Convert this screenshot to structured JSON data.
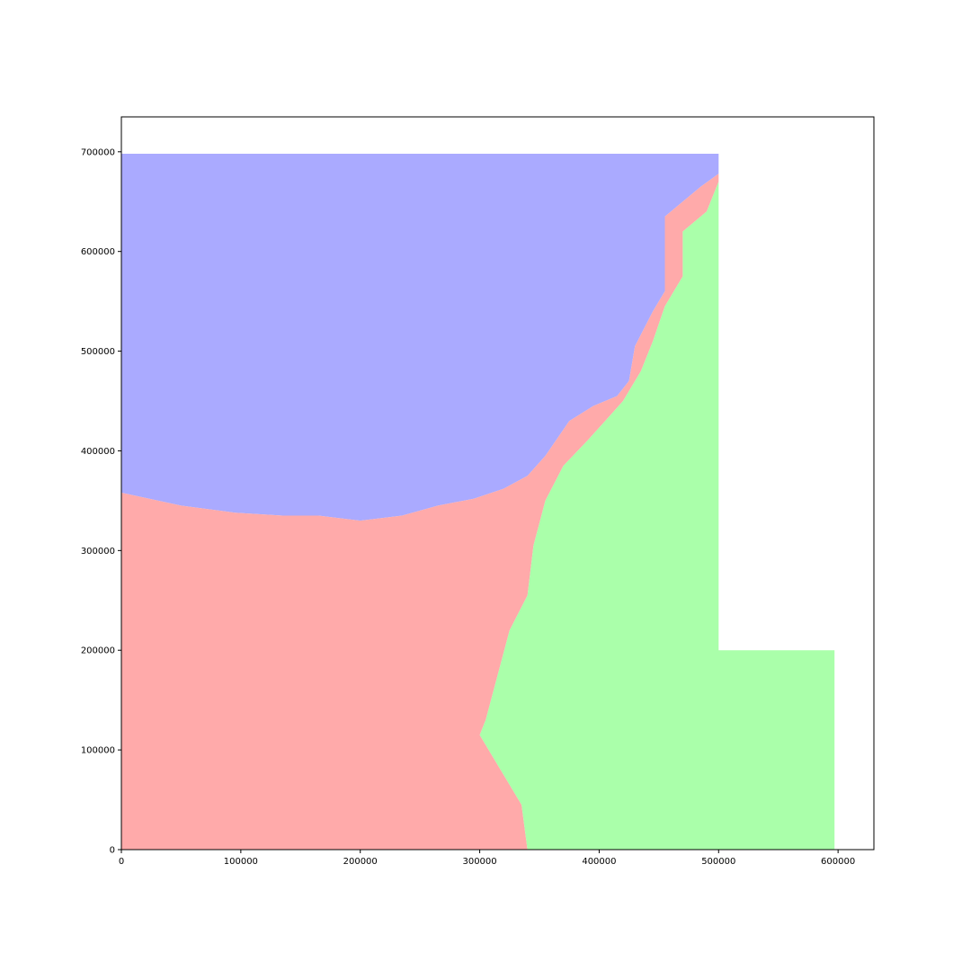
{
  "chart_data": {
    "type": "heatmap",
    "title": "",
    "xlabel": "",
    "ylabel": "",
    "xlim": [
      0,
      630000
    ],
    "ylim": [
      0,
      735000
    ],
    "x_ticks": [
      0,
      100000,
      200000,
      300000,
      400000,
      500000,
      600000
    ],
    "y_ticks": [
      0,
      100000,
      200000,
      300000,
      400000,
      500000,
      600000,
      700000
    ],
    "x_tick_labels": [
      "0",
      "100000",
      "200000",
      "300000",
      "400000",
      "500000",
      "600000"
    ],
    "y_tick_labels": [
      "0",
      "100000",
      "200000",
      "300000",
      "400000",
      "500000",
      "600000",
      "700000"
    ],
    "grid": false,
    "regions": [
      {
        "name": "blue-region",
        "color": "#aaaaff",
        "polygon": [
          [
            0,
            698000
          ],
          [
            500000,
            698000
          ],
          [
            500000,
            678000
          ],
          [
            485000,
            665000
          ],
          [
            470000,
            650000
          ],
          [
            455000,
            635000
          ],
          [
            455000,
            600000
          ],
          [
            455000,
            560000
          ],
          [
            445000,
            540000
          ],
          [
            430000,
            505000
          ],
          [
            425000,
            470000
          ],
          [
            415000,
            455000
          ],
          [
            395000,
            445000
          ],
          [
            375000,
            430000
          ],
          [
            355000,
            395000
          ],
          [
            340000,
            375000
          ],
          [
            320000,
            362000
          ],
          [
            295000,
            352000
          ],
          [
            265000,
            345000
          ],
          [
            235000,
            335000
          ],
          [
            200000,
            330000
          ],
          [
            165000,
            335000
          ],
          [
            135000,
            335000
          ],
          [
            95000,
            338000
          ],
          [
            50000,
            345000
          ],
          [
            0,
            358000
          ]
        ]
      },
      {
        "name": "red-region",
        "color": "#ffaaaa",
        "polygon": [
          [
            0,
            358000
          ],
          [
            50000,
            345000
          ],
          [
            95000,
            338000
          ],
          [
            135000,
            335000
          ],
          [
            165000,
            335000
          ],
          [
            200000,
            330000
          ],
          [
            235000,
            335000
          ],
          [
            265000,
            345000
          ],
          [
            295000,
            352000
          ],
          [
            320000,
            362000
          ],
          [
            340000,
            375000
          ],
          [
            355000,
            395000
          ],
          [
            375000,
            430000
          ],
          [
            395000,
            445000
          ],
          [
            415000,
            455000
          ],
          [
            425000,
            470000
          ],
          [
            430000,
            505000
          ],
          [
            445000,
            540000
          ],
          [
            455000,
            560000
          ],
          [
            455000,
            600000
          ],
          [
            455000,
            635000
          ],
          [
            470000,
            650000
          ],
          [
            485000,
            665000
          ],
          [
            500000,
            678000
          ],
          [
            500000,
            670000
          ],
          [
            490000,
            640000
          ],
          [
            470000,
            620000
          ],
          [
            470000,
            575000
          ],
          [
            455000,
            545000
          ],
          [
            445000,
            510000
          ],
          [
            435000,
            480000
          ],
          [
            420000,
            450000
          ],
          [
            405000,
            430000
          ],
          [
            390000,
            410000
          ],
          [
            370000,
            385000
          ],
          [
            355000,
            350000
          ],
          [
            345000,
            305000
          ],
          [
            340000,
            255000
          ],
          [
            325000,
            220000
          ],
          [
            315000,
            175000
          ],
          [
            305000,
            130000
          ],
          [
            300000,
            115000
          ],
          [
            310000,
            95000
          ],
          [
            325000,
            65000
          ],
          [
            335000,
            45000
          ],
          [
            340000,
            0
          ],
          [
            0,
            0
          ]
        ]
      },
      {
        "name": "green-region",
        "color": "#aaffaa",
        "polygon": [
          [
            340000,
            0
          ],
          [
            335000,
            45000
          ],
          [
            325000,
            65000
          ],
          [
            310000,
            95000
          ],
          [
            300000,
            115000
          ],
          [
            305000,
            130000
          ],
          [
            315000,
            175000
          ],
          [
            325000,
            220000
          ],
          [
            340000,
            255000
          ],
          [
            345000,
            305000
          ],
          [
            355000,
            350000
          ],
          [
            370000,
            385000
          ],
          [
            390000,
            410000
          ],
          [
            405000,
            430000
          ],
          [
            420000,
            450000
          ],
          [
            435000,
            480000
          ],
          [
            445000,
            510000
          ],
          [
            455000,
            545000
          ],
          [
            470000,
            575000
          ],
          [
            470000,
            620000
          ],
          [
            490000,
            640000
          ],
          [
            500000,
            670000
          ],
          [
            500000,
            200000
          ],
          [
            597000,
            200000
          ],
          [
            597000,
            0
          ]
        ]
      }
    ]
  }
}
